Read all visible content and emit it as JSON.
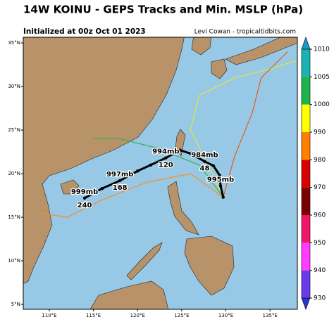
{
  "chart_data": {
    "type": "map",
    "title": "14W KOINU - GEPS Tracks and Min. MSLP (hPa)",
    "subtitle": "Initialized at 00z Oct 01 2023",
    "credit": "Levi Cowan - tropicaltidbits.com",
    "xlim": [
      107.05,
      138.1
    ],
    "ylim": [
      4.44,
      35.65
    ],
    "xticks": [
      {
        "value": 110,
        "label": "110°E"
      },
      {
        "value": 115,
        "label": "115°E"
      },
      {
        "value": 120,
        "label": "120°E"
      },
      {
        "value": 125,
        "label": "125°E"
      },
      {
        "value": 130,
        "label": "130°E"
      },
      {
        "value": 135,
        "label": "135°E"
      }
    ],
    "yticks": [
      {
        "value": 5,
        "label": "5°N"
      },
      {
        "value": 10,
        "label": "10°N"
      },
      {
        "value": 15,
        "label": "15°N"
      },
      {
        "value": 20,
        "label": "20°N"
      },
      {
        "value": 25,
        "label": "25°N"
      },
      {
        "value": 30,
        "label": "30°N"
      },
      {
        "value": 35,
        "label": "35°N"
      }
    ],
    "colorbar": {
      "ticks": [
        930,
        940,
        950,
        960,
        970,
        980,
        990,
        1000,
        1005,
        1010
      ],
      "colors": [
        "#6a3be8",
        "#ff3cff",
        "#f0176b",
        "#7a0000",
        "#d90000",
        "#ff7f00",
        "#ffff00",
        "#1fb34b",
        "#1ab3b3"
      ],
      "under_color": "#2b35d0",
      "over_color": "#1a99cc"
    },
    "series": [
      {
        "color": "#e6e633",
        "lon": [
          129.7,
          128.0,
          126.0,
          127.0,
          131.0,
          135.0,
          138.0
        ],
        "lat": [
          17.3,
          21.0,
          25.0,
          29.0,
          31.0,
          32.0,
          33.0
        ]
      },
      {
        "color": "#33b34d",
        "lon": [
          129.7,
          127.0,
          122.0,
          118.0,
          115.0
        ],
        "lat": [
          17.3,
          21.0,
          23.0,
          24.0,
          24.0
        ]
      },
      {
        "color": "#ff8c1a",
        "lon": [
          129.7,
          126.0,
          121.0,
          116.0,
          112.0,
          109.0
        ],
        "lat": [
          17.3,
          20.0,
          19.0,
          17.0,
          15.0,
          15.5
        ]
      },
      {
        "color": "#e65c1a",
        "lon": [
          129.7,
          131.0,
          133.0,
          134.0,
          137.0
        ],
        "lat": [
          17.3,
          22.0,
          27.0,
          31.0,
          34.0
        ]
      }
    ],
    "track": {
      "color": "#000000",
      "lon": [
        129.7,
        129.4,
        129.3,
        128.6,
        127.6,
        126.0,
        124.8,
        123.2,
        121.5,
        120.0,
        118.0,
        116.0,
        114.0
      ],
      "lat": [
        17.3,
        18.6,
        19.8,
        20.9,
        21.4,
        22.3,
        22.7,
        21.8,
        21.0,
        20.3,
        19.2,
        18.3,
        17.2
      ],
      "pressure_labels": [
        null,
        "995mb",
        null,
        null,
        "984mb",
        null,
        null,
        "994mb",
        null,
        null,
        "997mb",
        null,
        "999mb"
      ],
      "hour_labels": [
        null,
        null,
        null,
        null,
        48,
        null,
        null,
        120,
        null,
        null,
        168,
        null,
        240
      ]
    }
  }
}
